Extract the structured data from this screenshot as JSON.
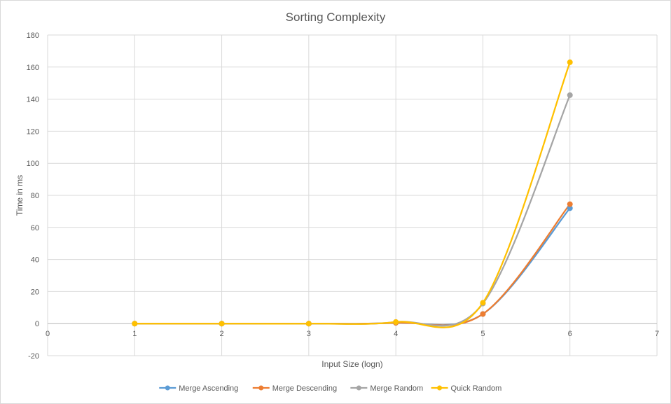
{
  "chart_data": {
    "type": "line",
    "title": "Sorting Complexity",
    "xlabel": "Input Size (logn)",
    "ylabel": "Time in ms",
    "xlim": [
      0,
      7
    ],
    "ylim": [
      -20,
      180
    ],
    "x_ticks": [
      0,
      1,
      2,
      3,
      4,
      5,
      6,
      7
    ],
    "y_ticks": [
      -20,
      0,
      20,
      40,
      60,
      80,
      100,
      120,
      140,
      160,
      180
    ],
    "grid": true,
    "legend_position": "bottom",
    "smooth": true,
    "x": [
      1,
      2,
      3,
      4,
      5,
      6
    ],
    "series": [
      {
        "name": "Merge Ascending",
        "color": "#5B9BD5",
        "values": [
          0,
          0,
          0,
          0.5,
          6,
          72
        ]
      },
      {
        "name": "Merge Descending",
        "color": "#ED7D31",
        "values": [
          0,
          0,
          0,
          0.5,
          6,
          74.5
        ]
      },
      {
        "name": "Merge Random",
        "color": "#A5A5A5",
        "values": [
          0,
          0,
          0,
          1,
          12.5,
          142.5
        ]
      },
      {
        "name": "Quick Random",
        "color": "#FFC000",
        "values": [
          0,
          0,
          0,
          1,
          13,
          163
        ]
      }
    ]
  }
}
